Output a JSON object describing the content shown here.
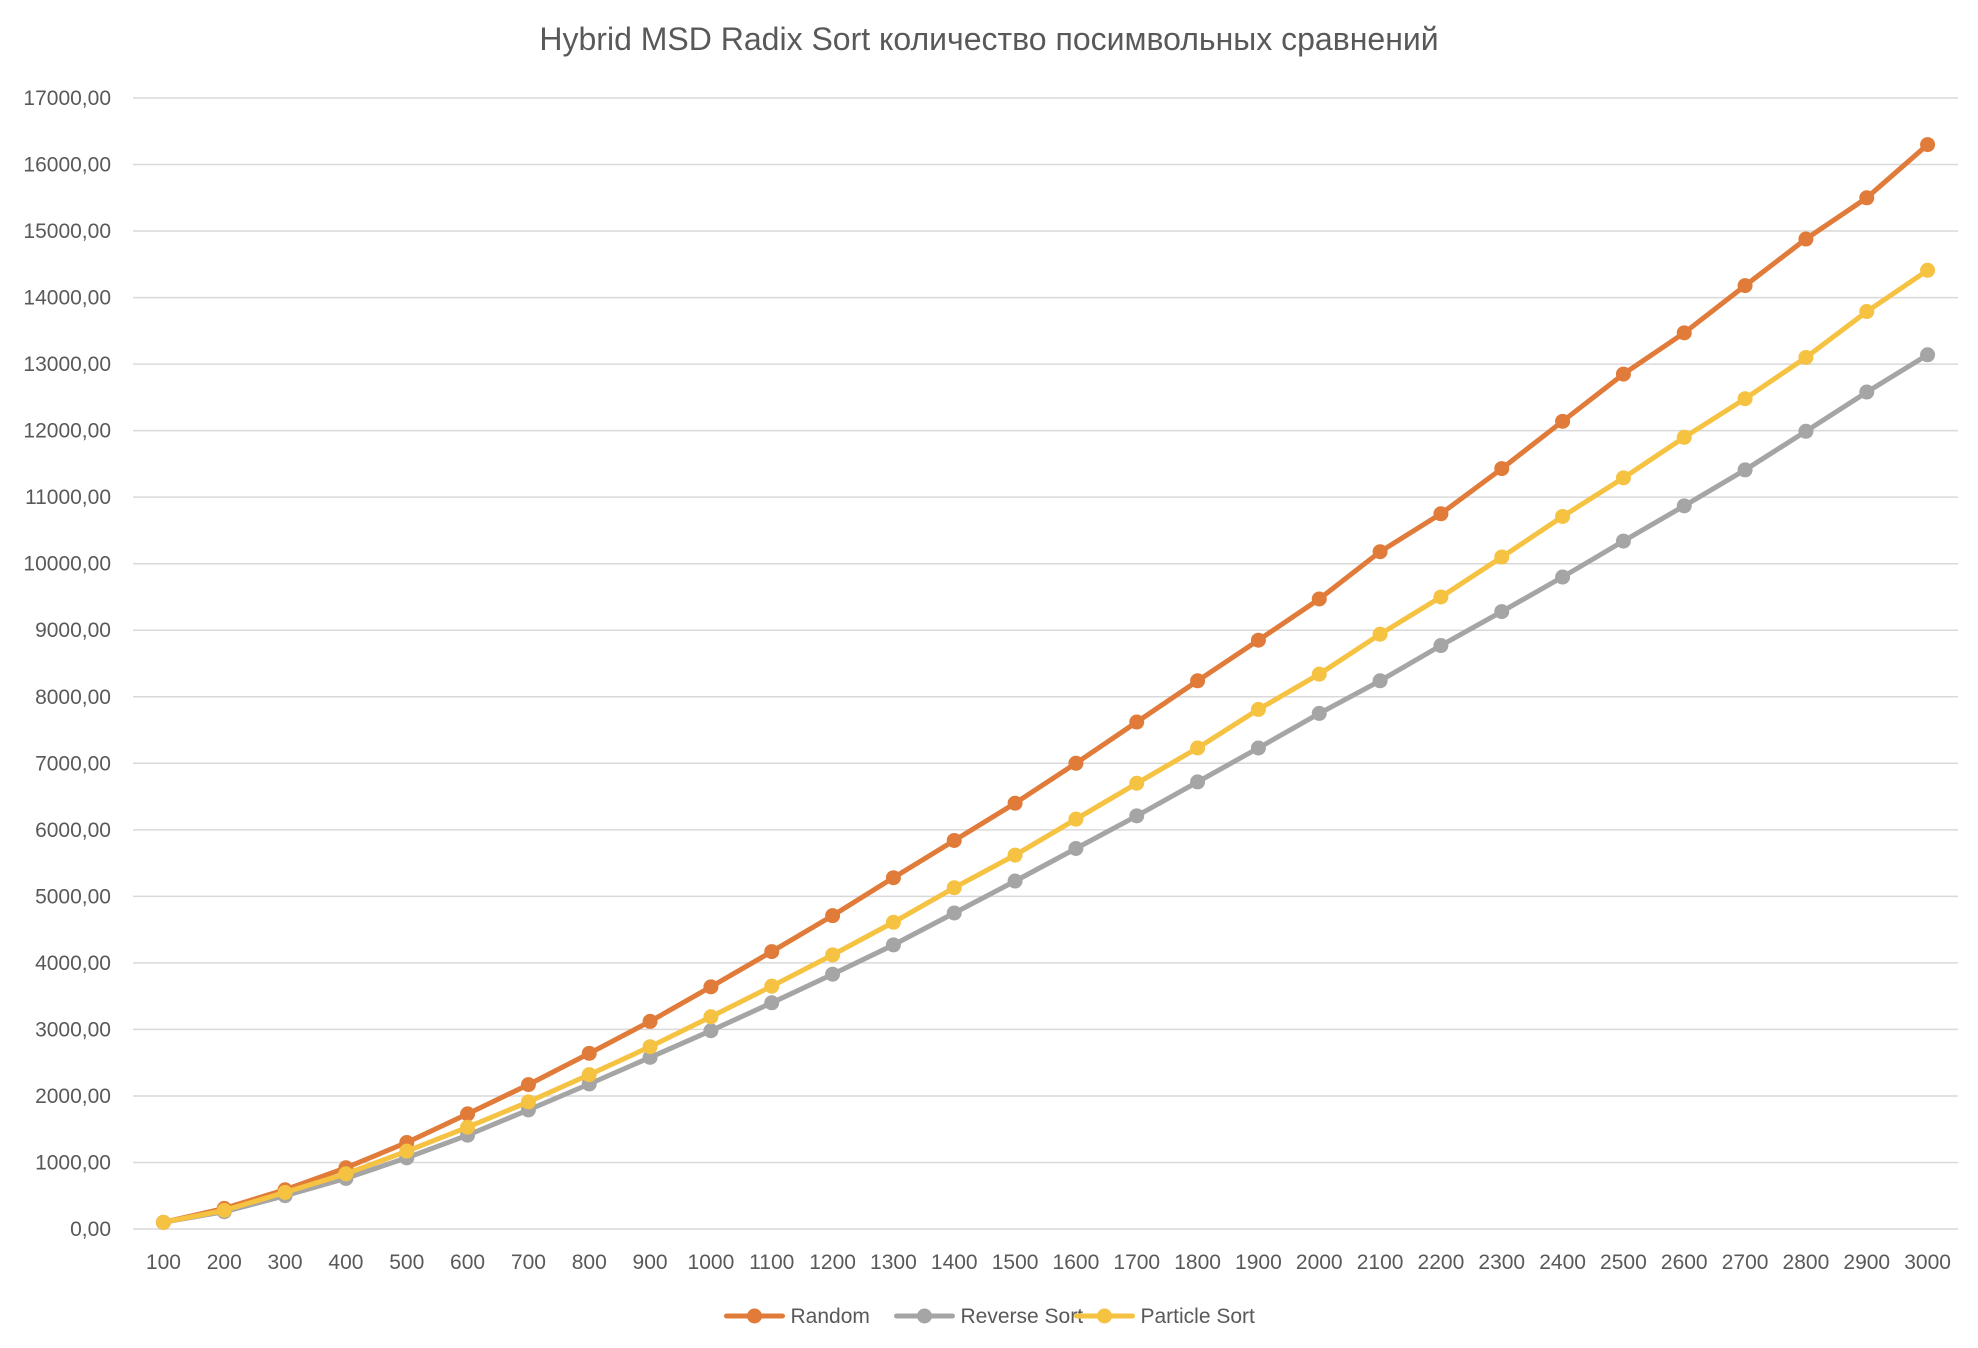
{
  "chart_data": {
    "type": "line",
    "title": "Hybrid MSD Radix Sort количество посимвольных сравнений",
    "xlabel": "",
    "ylabel": "",
    "categories": [
      "100",
      "200",
      "300",
      "400",
      "500",
      "600",
      "700",
      "800",
      "900",
      "1000",
      "1100",
      "1200",
      "1300",
      "1400",
      "1500",
      "1600",
      "1700",
      "1800",
      "1900",
      "2000",
      "2100",
      "2200",
      "2300",
      "2400",
      "2500",
      "2600",
      "2700",
      "2800",
      "2900",
      "3000"
    ],
    "ylim": [
      0,
      17000
    ],
    "yticks": [
      0,
      1000,
      2000,
      3000,
      4000,
      5000,
      6000,
      7000,
      8000,
      9000,
      10000,
      11000,
      12000,
      13000,
      14000,
      15000,
      16000,
      17000
    ],
    "ytick_labels": [
      "0,00",
      "1000,00",
      "2000,00",
      "3000,00",
      "4000,00",
      "5000,00",
      "6000,00",
      "7000,00",
      "8000,00",
      "9000,00",
      "10000,00",
      "11000,00",
      "12000,00",
      "13000,00",
      "14000,00",
      "15000,00",
      "16000,00",
      "17000,00"
    ],
    "grid": true,
    "legend_position": "bottom",
    "series": [
      {
        "name": "Random",
        "color": "#E07B39",
        "values": [
          100,
          310,
          590,
          920,
          1300,
          1730,
          2170,
          2640,
          3120,
          3640,
          4170,
          4710,
          5280,
          5840,
          6400,
          7000,
          7620,
          8240,
          8850,
          9470,
          10180,
          10750,
          11430,
          12140,
          12850,
          13470,
          14180,
          14880,
          15500,
          16300
        ]
      },
      {
        "name": "Reverse Sort",
        "color": "#A5A5A5",
        "values": [
          100,
          260,
          500,
          760,
          1070,
          1410,
          1790,
          2180,
          2580,
          2980,
          3400,
          3830,
          4270,
          4750,
          5230,
          5720,
          6210,
          6720,
          7230,
          7750,
          8240,
          8770,
          9280,
          9800,
          10340,
          10870,
          11410,
          11990,
          12580,
          13140
        ]
      },
      {
        "name": "Particle Sort",
        "color": "#F5C242",
        "values": [
          100,
          280,
          550,
          830,
          1170,
          1530,
          1910,
          2320,
          2740,
          3190,
          3650,
          4120,
          4610,
          5130,
          5620,
          6160,
          6700,
          7230,
          7810,
          8340,
          8940,
          9500,
          10100,
          10710,
          11290,
          11900,
          12480,
          13100,
          13790,
          14410
        ]
      }
    ]
  }
}
